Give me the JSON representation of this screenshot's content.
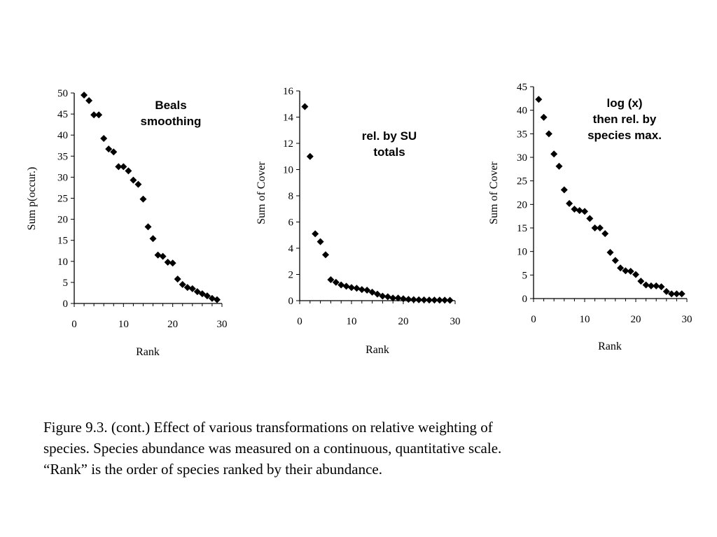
{
  "chart_data": [
    {
      "type": "scatter",
      "annotation": [
        "Beals",
        "smoothing"
      ],
      "xlabel": "Rank",
      "ylabel": "Sum p(occur.)",
      "xlim": [
        0,
        30
      ],
      "ylim": [
        0,
        50
      ],
      "xticks": [
        "0",
        "10",
        "20",
        "30"
      ],
      "yticks": [
        "0",
        "5",
        "10",
        "15",
        "20",
        "25",
        "30",
        "35",
        "40",
        "45",
        "50"
      ],
      "x": [
        2,
        3,
        4,
        5,
        6,
        7,
        8,
        9,
        10,
        11,
        12,
        13,
        14,
        15,
        16,
        17,
        18,
        19,
        20,
        21,
        22,
        23,
        24,
        25,
        26,
        27,
        28,
        29
      ],
      "y": [
        49.5,
        48.2,
        44.8,
        44.8,
        39.2,
        36.7,
        36.0,
        32.5,
        32.5,
        31.5,
        29.3,
        28.3,
        24.8,
        18.2,
        15.4,
        11.5,
        11.2,
        9.8,
        9.6,
        5.8,
        4.5,
        3.8,
        3.5,
        2.8,
        2.3,
        1.8,
        1.2,
        0.9
      ]
    },
    {
      "type": "scatter",
      "annotation": [
        "rel. by SU",
        "totals"
      ],
      "xlabel": "Rank",
      "ylabel": "Sum of Cover",
      "xlim": [
        0,
        30
      ],
      "ylim": [
        0,
        16
      ],
      "xticks": [
        "0",
        "10",
        "20",
        "30"
      ],
      "yticks": [
        "0",
        "2",
        "4",
        "6",
        "8",
        "10",
        "12",
        "14",
        "16"
      ],
      "x": [
        1,
        2,
        3,
        4,
        5,
        6,
        7,
        8,
        9,
        10,
        11,
        12,
        13,
        14,
        15,
        16,
        17,
        18,
        19,
        20,
        21,
        22,
        23,
        24,
        25,
        26,
        27,
        28,
        29
      ],
      "y": [
        14.8,
        11.0,
        5.1,
        4.5,
        3.5,
        1.6,
        1.4,
        1.2,
        1.1,
        1.0,
        0.95,
        0.85,
        0.8,
        0.65,
        0.5,
        0.35,
        0.3,
        0.2,
        0.2,
        0.15,
        0.1,
        0.08,
        0.07,
        0.06,
        0.05,
        0.05,
        0.04,
        0.04,
        0.03
      ]
    },
    {
      "type": "scatter",
      "annotation": [
        "log (x)",
        "then rel. by",
        "species max."
      ],
      "xlabel": "Rank",
      "ylabel": "Sum of Cover",
      "xlim": [
        0,
        30
      ],
      "ylim": [
        0,
        45
      ],
      "xticks": [
        "0",
        "10",
        "20",
        "30"
      ],
      "yticks": [
        "0",
        "5",
        "10",
        "15",
        "20",
        "25",
        "30",
        "35",
        "40",
        "45"
      ],
      "x": [
        1,
        2,
        3,
        4,
        5,
        6,
        7,
        8,
        9,
        10,
        11,
        12,
        13,
        14,
        15,
        16,
        17,
        18,
        19,
        20,
        21,
        22,
        23,
        24,
        25,
        26,
        27,
        28,
        29
      ],
      "y": [
        42.3,
        38.5,
        35.0,
        30.7,
        28.1,
        23.1,
        20.2,
        19.0,
        18.7,
        18.5,
        17.0,
        15.0,
        15.0,
        13.8,
        9.8,
        8.1,
        6.5,
        5.9,
        5.8,
        5.1,
        3.7,
        2.9,
        2.7,
        2.7,
        2.5,
        1.5,
        1.0,
        1.0,
        1.0
      ]
    }
  ],
  "caption": [
    "Figure 9.3. (cont.)  Effect of various transformations on relative weighting of",
    "species.  Species abundance was measured on a continuous, quantitative scale.",
    "“Rank” is the order of species ranked by their abundance."
  ]
}
